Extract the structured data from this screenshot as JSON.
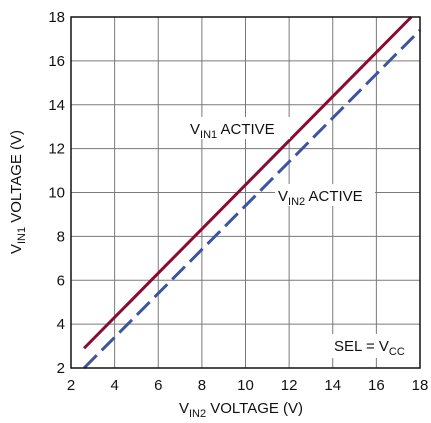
{
  "chart_data": {
    "type": "line",
    "xlabel": {
      "main": "V",
      "sub": "IN2",
      "rest": " VOLTAGE (V)"
    },
    "ylabel": {
      "main": "V",
      "sub": "IN1",
      "rest": " VOLTAGE (V)"
    },
    "xlim": [
      2,
      18
    ],
    "ylim": [
      2,
      18
    ],
    "xticks": [
      "2",
      "4",
      "6",
      "8",
      "10",
      "12",
      "14",
      "16",
      "18"
    ],
    "yticks": [
      "2",
      "4",
      "6",
      "8",
      "10",
      "12",
      "14",
      "16",
      "18"
    ],
    "grid": true,
    "series": [
      {
        "id": "vin1",
        "color": "#8b0a2f",
        "style": "solid",
        "x": [
          2.6,
          17.6
        ],
        "y": [
          2.9,
          18.0
        ]
      },
      {
        "id": "vin2",
        "color": "#3d55a0",
        "style": "dashed",
        "x": [
          2.6,
          18.0
        ],
        "y": [
          2.0,
          17.4
        ]
      }
    ],
    "annotations": [
      {
        "id": "vin1-active",
        "main": "V",
        "sub": "IN1",
        "rest": " ACTIVE"
      },
      {
        "id": "vin2-active",
        "main": "V",
        "sub": "IN2",
        "rest": " ACTIVE"
      },
      {
        "id": "sel-note",
        "main": "SEL = V",
        "sub": "CC",
        "rest": ""
      }
    ]
  }
}
